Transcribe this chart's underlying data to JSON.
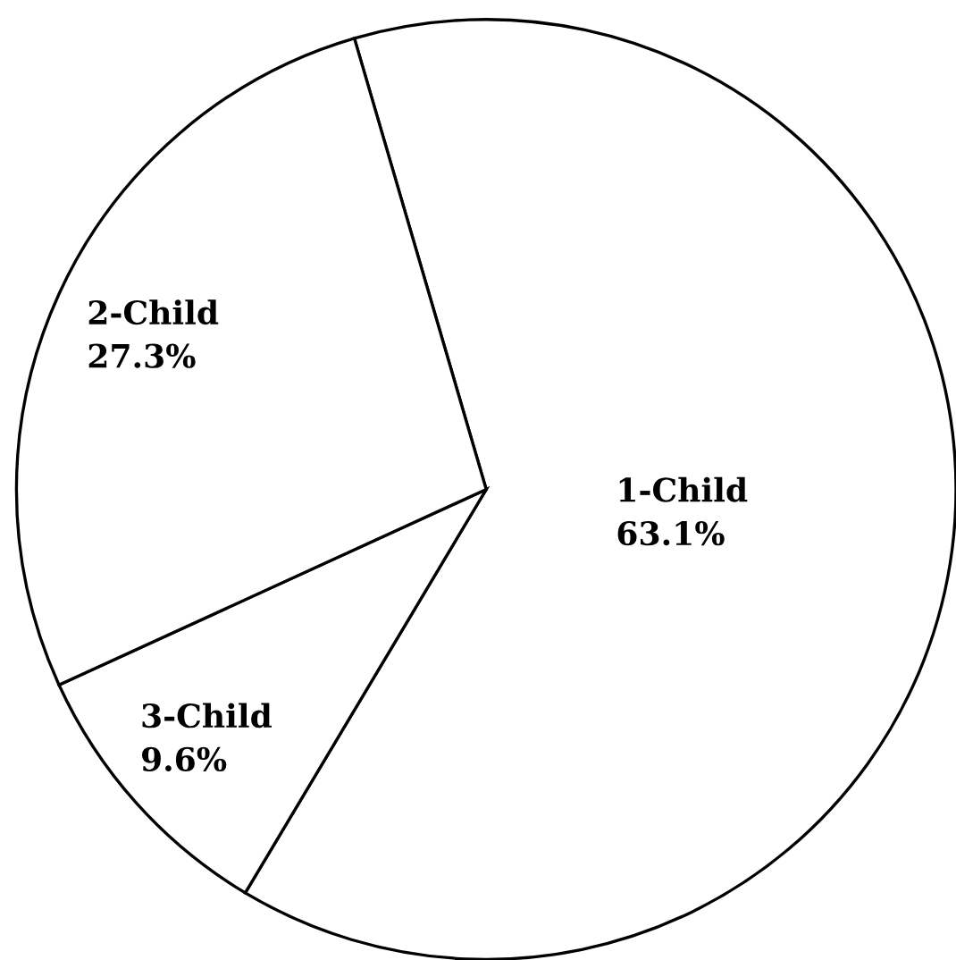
{
  "chart_data": {
    "type": "pie",
    "categories": [
      "1-Child",
      "3-Child",
      "2-Child"
    ],
    "values": [
      63.1,
      9.6,
      27.3
    ],
    "value_labels": [
      "63.1%",
      "9.6%",
      "27.3%"
    ],
    "colors": [
      "#ffffff",
      "#ffffff",
      "#ffffff"
    ]
  }
}
